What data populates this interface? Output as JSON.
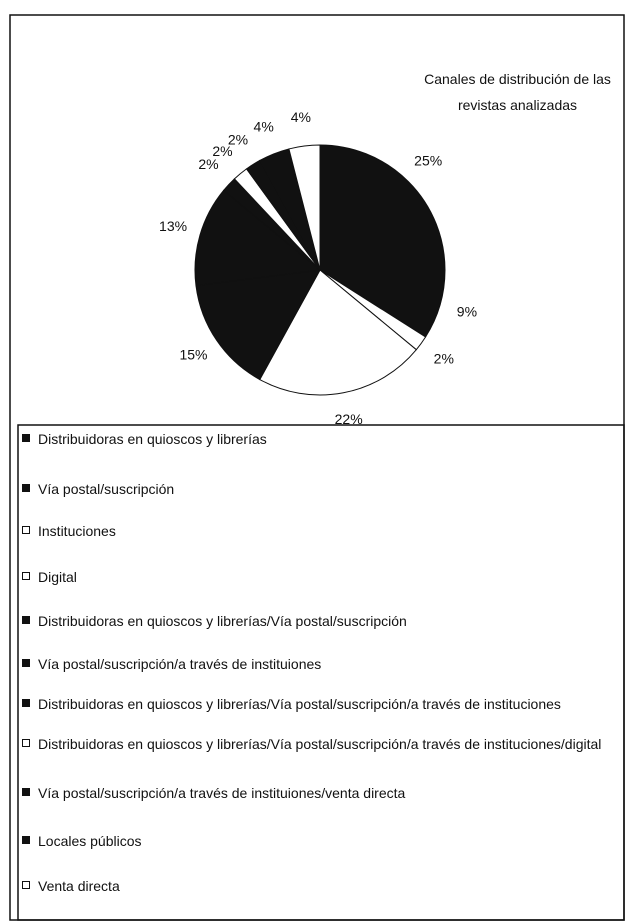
{
  "chart_data": {
    "type": "pie",
    "title": "Canales de distribución de las revistas analizadas",
    "categories": [
      "Distribuidoras en quioscos y librerías",
      "Vía postal/suscripción",
      "Instituciones",
      "Digital",
      "Distribuidoras en quioscos y librerías/Vía postal/suscripción",
      "Vía postal/suscripción/a través de instituiones",
      "Distribuidoras en quioscos y librerías/Vía postal/suscripción/a través de instituciones",
      "Distribuidoras en quioscos y librerías/Vía postal/suscripción/a través de instituciones/digital",
      "Vía postal/suscripción/a través de instituiones/venta directa",
      "Locales públicos",
      "Venta directa"
    ],
    "values": [
      25,
      9,
      2,
      22,
      15,
      13,
      2,
      2,
      2,
      4,
      4
    ],
    "value_labels": [
      "25%",
      "9%",
      "2%",
      "22%",
      "15%",
      "13%",
      "2%",
      "2%",
      "2%",
      "4%",
      "4%"
    ],
    "colors": [
      "#111111",
      "#111111",
      "#ffffff",
      "#ffffff",
      "#111111",
      "#111111",
      "#111111",
      "#ffffff",
      "#111111",
      "#111111",
      "#ffffff"
    ]
  }
}
